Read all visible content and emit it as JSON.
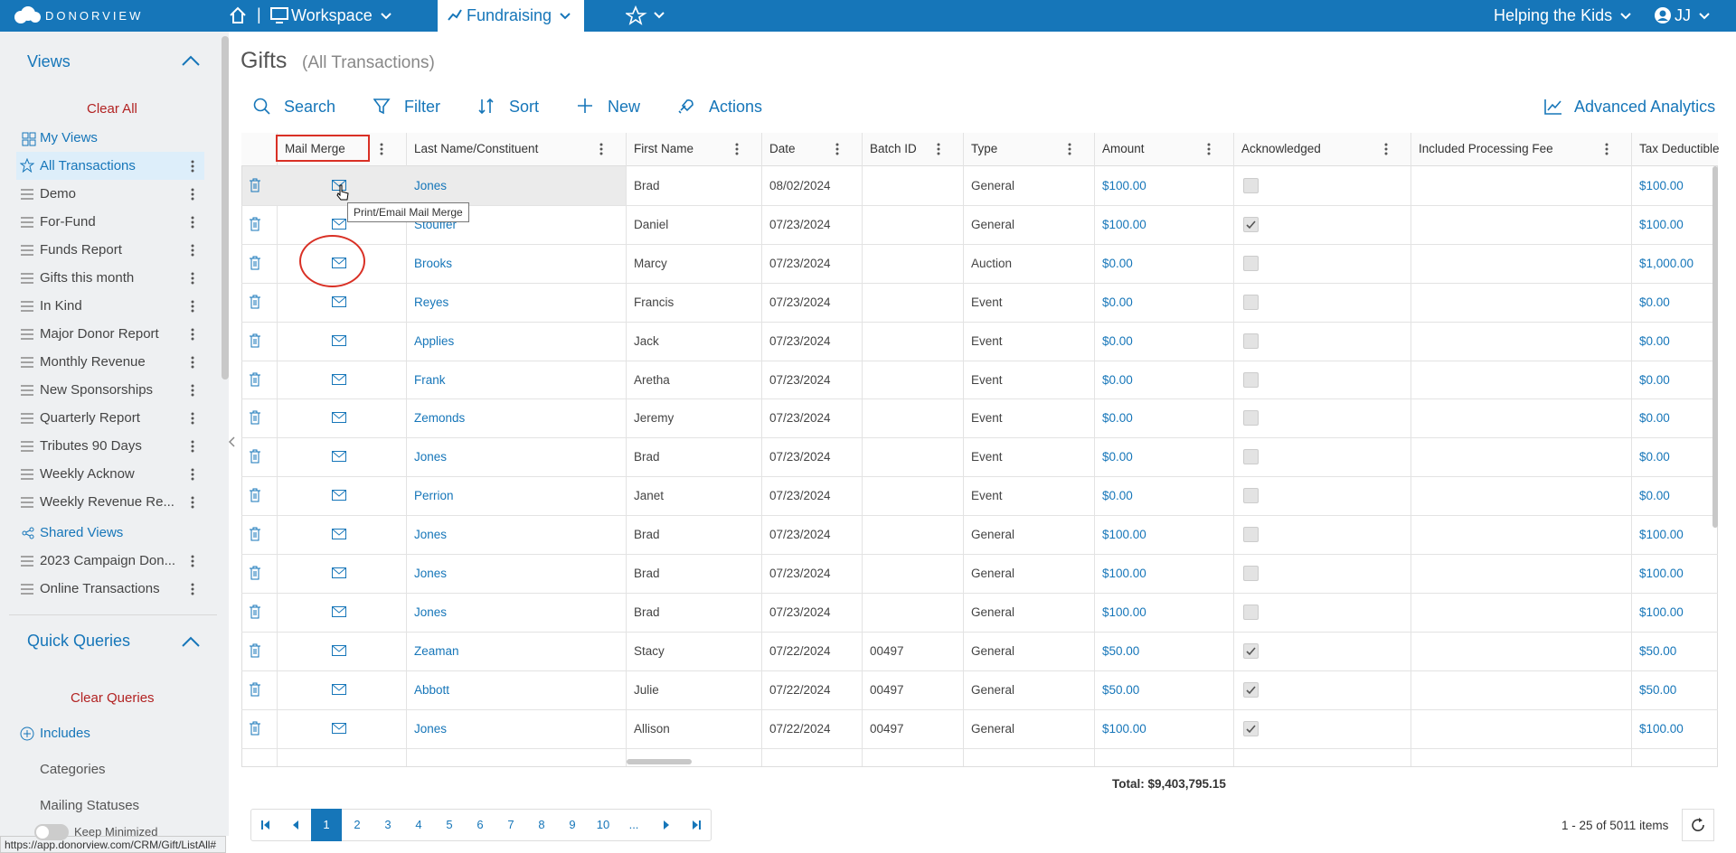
{
  "nav": {
    "brand": "DONORVIEW",
    "workspace": "Workspace",
    "fundraising": "Fundraising",
    "org": "Helping the Kids",
    "user": "JJ"
  },
  "page": {
    "title": "Gifts",
    "subtitle": "(All Transactions)"
  },
  "toolbar": {
    "search": "Search",
    "filter": "Filter",
    "sort": "Sort",
    "new": "New",
    "actions": "Actions",
    "analytics": "Advanced Analytics"
  },
  "sidebar": {
    "views_title": "Views",
    "clear_all": "Clear All",
    "my_views": "My Views",
    "views": [
      "All Transactions",
      "Demo",
      "For-Fund",
      "Funds Report",
      "Gifts this month",
      "In Kind",
      "Major Donor Report",
      "Monthly Revenue",
      "New Sponsorships",
      "Quarterly Report",
      "Tributes 90 Days",
      "Weekly Acknow",
      "Weekly Revenue Re..."
    ],
    "shared_views": "Shared Views",
    "shared": [
      "2023 Campaign Don...",
      "Online Transactions"
    ],
    "quick_queries": "Quick Queries",
    "clear_queries": "Clear Queries",
    "includes": "Includes",
    "categories": "Categories",
    "mailing_statuses": "Mailing Statuses",
    "keep_minimized": "Keep Minimized"
  },
  "table": {
    "columns": [
      "Mail Merge",
      "Last Name/Constituent",
      "First Name",
      "Date",
      "Batch ID",
      "Type",
      "Amount",
      "Acknowledged",
      "Included Processing Fee",
      "Tax Deductible"
    ],
    "rows": [
      {
        "last": "Jones",
        "first": "Brad",
        "date": "08/02/2024",
        "type": "General",
        "amount": "$100.00",
        "acknowledged": false,
        "tax": "$100.00"
      },
      {
        "last": "Stouffer",
        "first": "Daniel",
        "date": "07/23/2024",
        "type": "General",
        "amount": "$100.00",
        "acknowledged": true,
        "tax": "$100.00"
      },
      {
        "last": "Brooks",
        "first": "Marcy",
        "date": "07/23/2024",
        "type": "Auction",
        "amount": "$0.00",
        "acknowledged": false,
        "tax": "$1,000.00"
      },
      {
        "last": "Reyes",
        "first": "Francis",
        "date": "07/23/2024",
        "type": "Event",
        "amount": "$0.00",
        "acknowledged": false,
        "tax": "$0.00"
      },
      {
        "last": "Applies",
        "first": "Jack",
        "date": "07/23/2024",
        "type": "Event",
        "amount": "$0.00",
        "acknowledged": false,
        "tax": "$0.00"
      },
      {
        "last": "Frank",
        "first": "Aretha",
        "date": "07/23/2024",
        "type": "Event",
        "amount": "$0.00",
        "acknowledged": false,
        "tax": "$0.00"
      },
      {
        "last": "Zemonds",
        "first": "Jeremy",
        "date": "07/23/2024",
        "type": "Event",
        "amount": "$0.00",
        "acknowledged": false,
        "tax": "$0.00"
      },
      {
        "last": "Jones",
        "first": "Brad",
        "date": "07/23/2024",
        "type": "Event",
        "amount": "$0.00",
        "acknowledged": false,
        "tax": "$0.00"
      },
      {
        "last": "Perrion",
        "first": "Janet",
        "date": "07/23/2024",
        "type": "Event",
        "amount": "$0.00",
        "acknowledged": false,
        "tax": "$0.00"
      },
      {
        "last": "Jones",
        "first": "Brad",
        "date": "07/23/2024",
        "type": "General",
        "amount": "$100.00",
        "acknowledged": false,
        "tax": "$100.00"
      },
      {
        "last": "Jones",
        "first": "Brad",
        "date": "07/23/2024",
        "type": "General",
        "amount": "$100.00",
        "acknowledged": false,
        "tax": "$100.00"
      },
      {
        "last": "Jones",
        "first": "Brad",
        "date": "07/23/2024",
        "type": "General",
        "amount": "$100.00",
        "acknowledged": false,
        "tax": "$100.00"
      },
      {
        "last": "Zeaman",
        "first": "Stacy",
        "date": "07/22/2024",
        "batch": "00497",
        "type": "General",
        "amount": "$50.00",
        "acknowledged": true,
        "tax": "$50.00"
      },
      {
        "last": "Abbott",
        "first": "Julie",
        "date": "07/22/2024",
        "batch": "00497",
        "type": "General",
        "amount": "$50.00",
        "acknowledged": true,
        "tax": "$50.00"
      },
      {
        "last": "Jones",
        "first": "Allison",
        "date": "07/22/2024",
        "batch": "00497",
        "type": "General",
        "amount": "$100.00",
        "acknowledged": true,
        "tax": "$100.00"
      }
    ],
    "total": "Total: $9,403,795.15",
    "tooltip": "Print/Email Mail Merge"
  },
  "pager": {
    "pages": [
      "1",
      "2",
      "3",
      "4",
      "5",
      "6",
      "7",
      "8",
      "9",
      "10",
      "..."
    ],
    "summary": "1 - 25 of 5011 items"
  },
  "status_url": "https://app.donorview.com/CRM/Gift/ListAll#"
}
